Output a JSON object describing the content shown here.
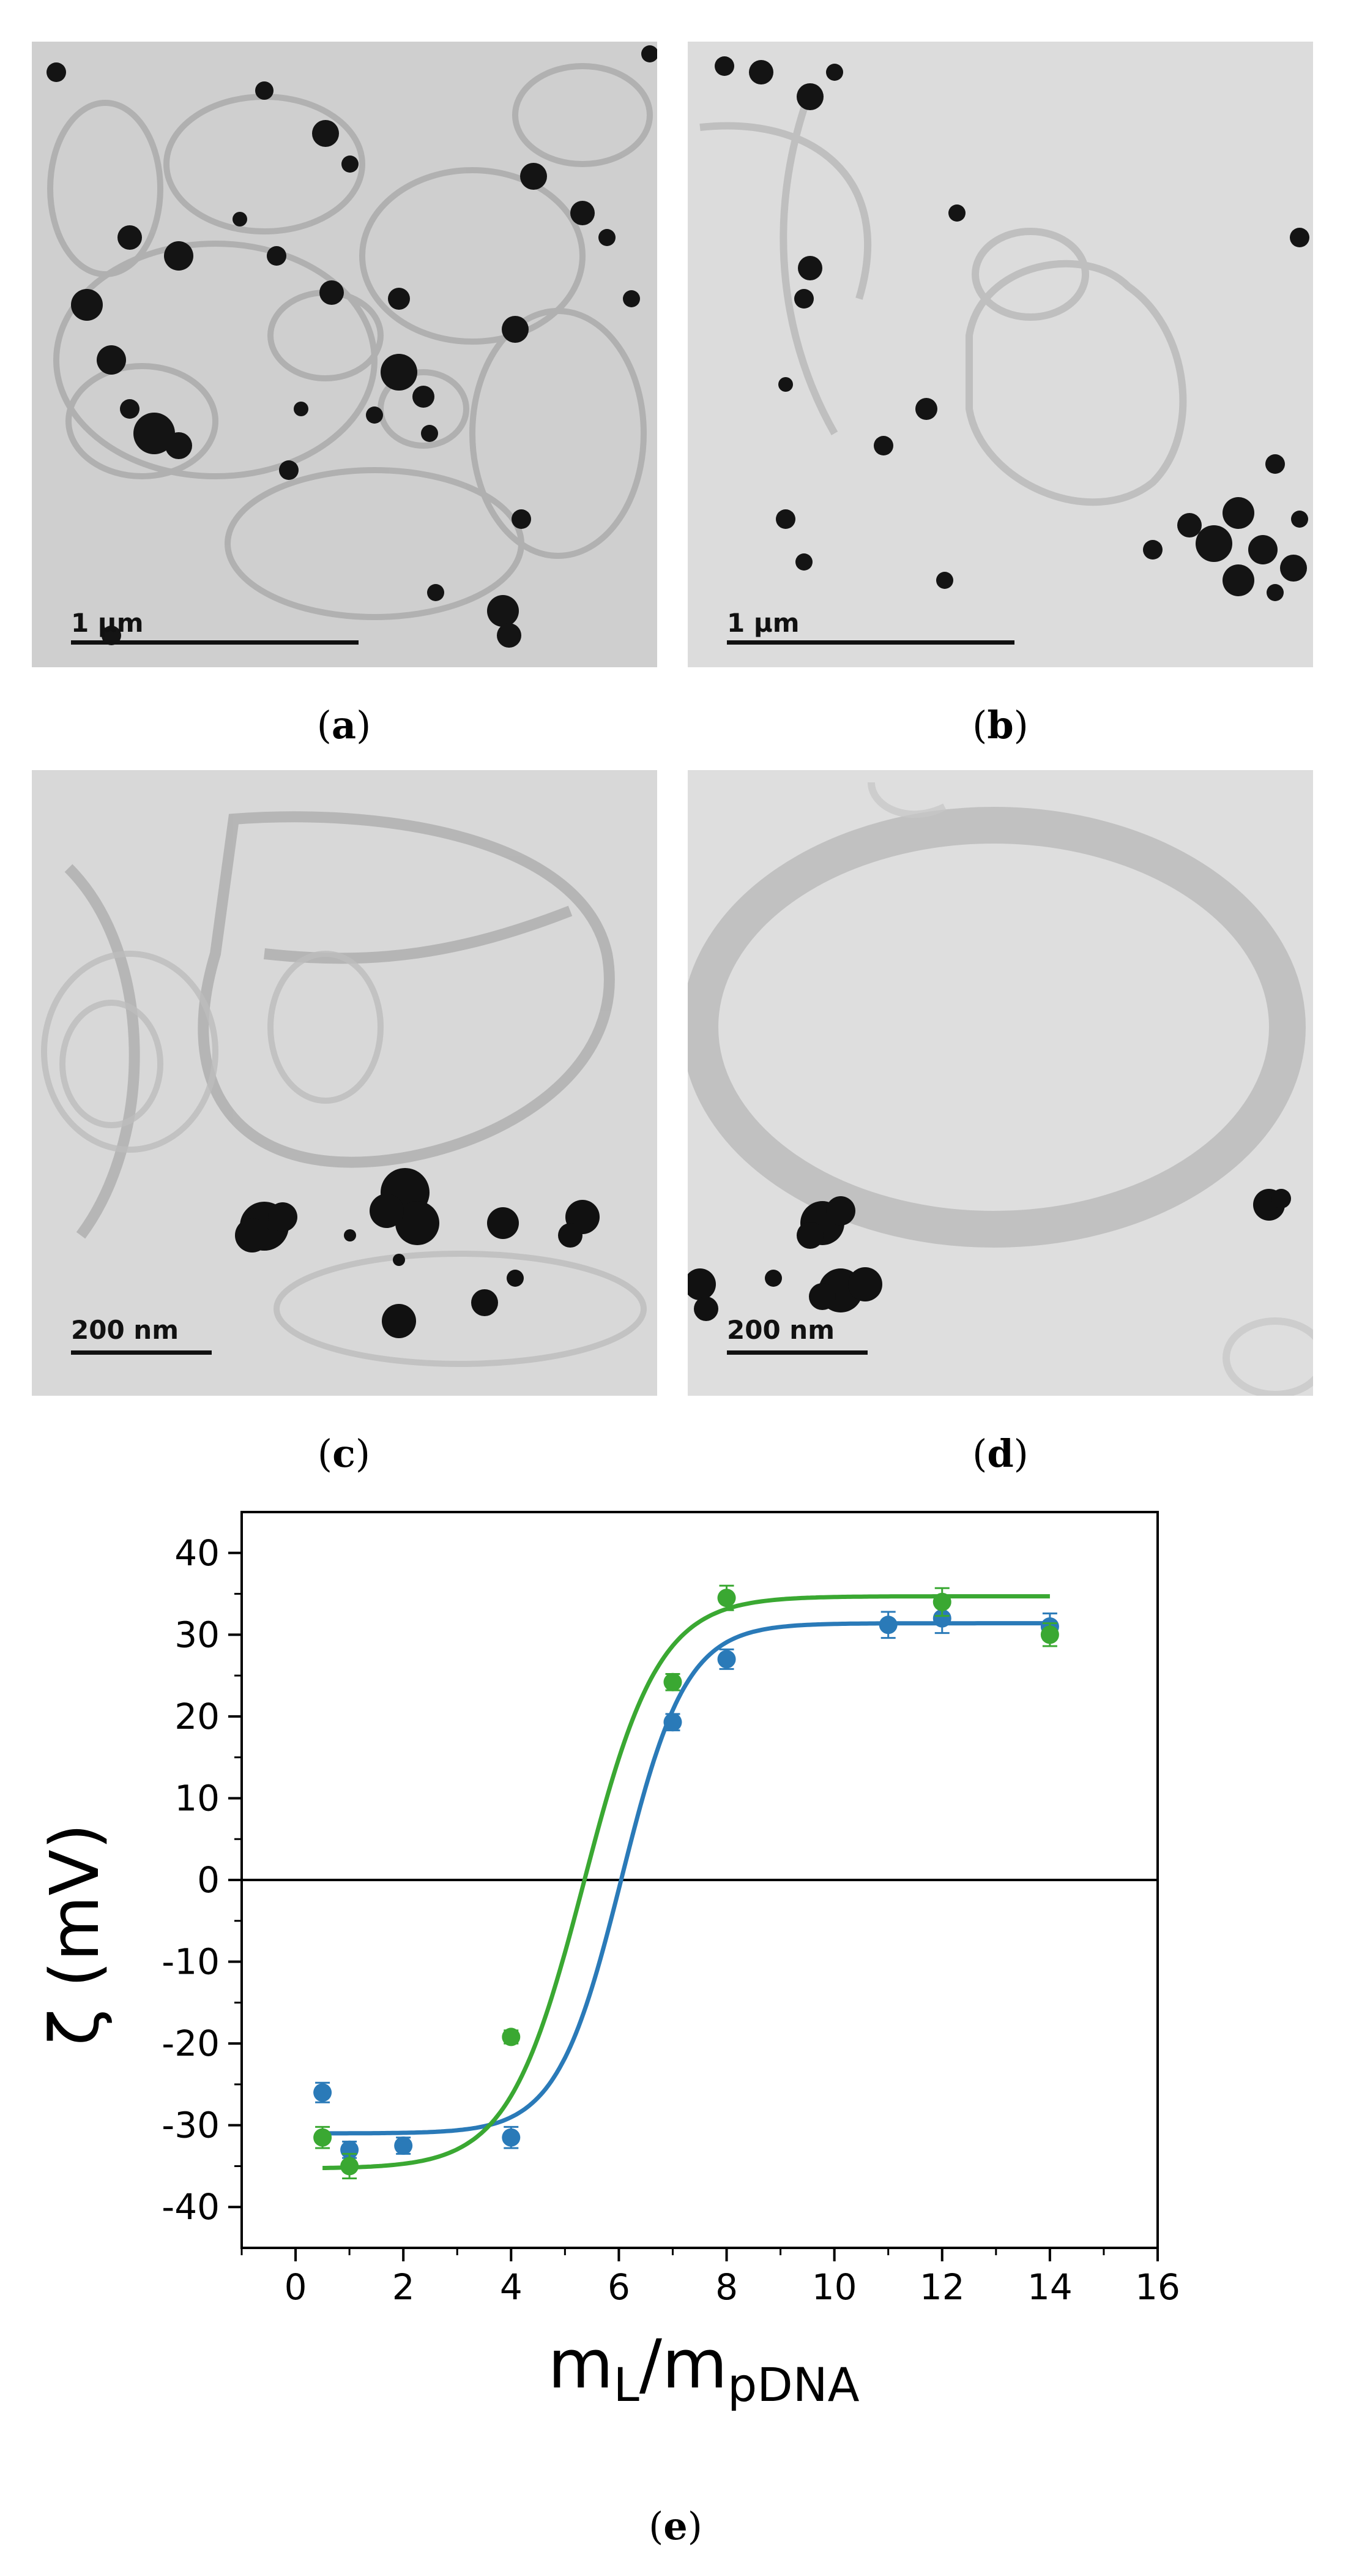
{
  "panels": [
    {
      "id": "a",
      "scale_bar": "1 µm"
    },
    {
      "id": "b",
      "scale_bar": "1 µm"
    },
    {
      "id": "c",
      "scale_bar": "200 nm"
    },
    {
      "id": "d",
      "scale_bar": "200 nm"
    }
  ],
  "captions": {
    "a": "a",
    "b": "b",
    "c": "c",
    "d": "d",
    "e": "e"
  },
  "colors": {
    "series_1": "#2a7ab8",
    "series_2": "#3aa832"
  },
  "chart_data": {
    "type": "scatter",
    "xlabel_main": "m",
    "xlabel_sub1": "L",
    "xlabel_mid": "/m",
    "xlabel_sub2": "pDNA",
    "ylabel": "ζ (mV)",
    "xlim": [
      -1,
      16
    ],
    "ylim": [
      -45,
      45
    ],
    "xticks": [
      0,
      2,
      4,
      6,
      8,
      10,
      12,
      14,
      16
    ],
    "yticks": [
      -40,
      -30,
      -20,
      -10,
      0,
      10,
      20,
      30,
      40
    ],
    "zero_line": true,
    "series": [
      {
        "color": "#2a7ab8",
        "x": [
          0.5,
          1,
          2,
          4,
          7,
          8,
          11,
          12,
          14
        ],
        "y": [
          -26,
          -33,
          -32.5,
          -31.5,
          19.3,
          27,
          31.2,
          32,
          31
        ],
        "err": [
          1.2,
          1.0,
          1.0,
          1.3,
          1.0,
          1.2,
          1.6,
          1.8,
          1.6
        ],
        "fit": {
          "bottom": -31,
          "top": 31.4,
          "x0": 6.05,
          "k": 0.6
        }
      },
      {
        "color": "#3aa832",
        "x": [
          0.5,
          1,
          4,
          7,
          8,
          12,
          14
        ],
        "y": [
          -31.5,
          -35,
          -19.2,
          24.2,
          34.5,
          34,
          30
        ],
        "err": [
          1.3,
          1.5,
          0.8,
          1.0,
          1.5,
          1.7,
          1.4
        ],
        "fit": {
          "bottom": -35.3,
          "top": 34.7,
          "x0": 5.35,
          "k": 0.7
        }
      }
    ]
  }
}
